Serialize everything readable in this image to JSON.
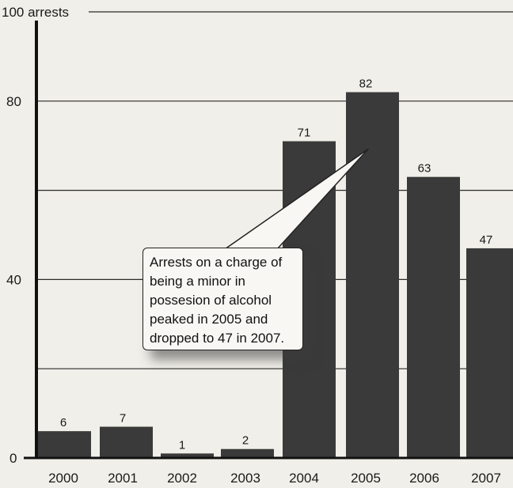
{
  "chart_data": {
    "type": "bar",
    "title": "",
    "xlabel": "",
    "ylabel": "",
    "ylim": [
      0,
      100
    ],
    "yticks": [
      {
        "value": 0,
        "label": "0"
      },
      {
        "value": 20,
        "label": ""
      },
      {
        "value": 40,
        "label": "40"
      },
      {
        "value": 60,
        "label": ""
      },
      {
        "value": 80,
        "label": "80"
      },
      {
        "value": 100,
        "label": "100 arrests"
      }
    ],
    "grid": true,
    "categories": [
      "2000",
      "2001",
      "2002",
      "2003",
      "2004",
      "2005",
      "2006",
      "2007"
    ],
    "values": [
      6,
      7,
      1,
      2,
      71,
      82,
      63,
      47
    ],
    "data_labels": [
      "6",
      "7",
      "1",
      "2",
      "71",
      "82",
      "63",
      "47"
    ],
    "bar_color": "#3a3a3a",
    "annotation": {
      "lines": [
        "Arrests on a charge of",
        "being a minor in",
        "possesion of alcohol",
        "peaked in 2005 and",
        "dropped to 47 in 2007."
      ],
      "points_to": "2005"
    }
  }
}
